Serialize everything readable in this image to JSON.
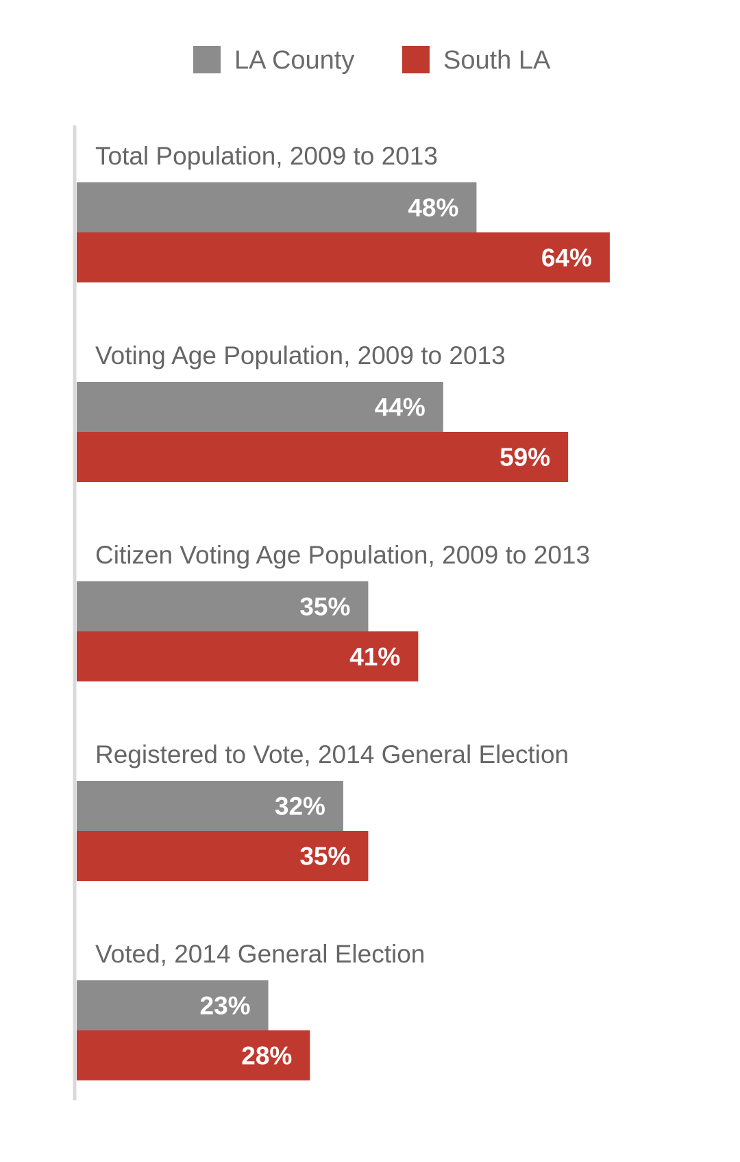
{
  "chart_data": {
    "type": "bar",
    "orientation": "horizontal",
    "title": "",
    "xlabel": "",
    "ylabel": "",
    "xlim": [
      0,
      71
    ],
    "legend_position": "top-center",
    "grid": false,
    "value_suffix": "%",
    "categories": [
      "Total Population, 2009 to 2013",
      "Voting Age Population, 2009 to 2013",
      "Citizen Voting Age Population, 2009 to 2013",
      "Registered to Vote, 2014 General Election",
      "Voted, 2014 General Election"
    ],
    "series": [
      {
        "name": "LA County",
        "color": "#8c8c8c",
        "values": [
          48,
          44,
          35,
          32,
          23
        ]
      },
      {
        "name": "South LA",
        "color": "#c0392f",
        "values": [
          64,
          59,
          41,
          35,
          28
        ]
      }
    ]
  }
}
